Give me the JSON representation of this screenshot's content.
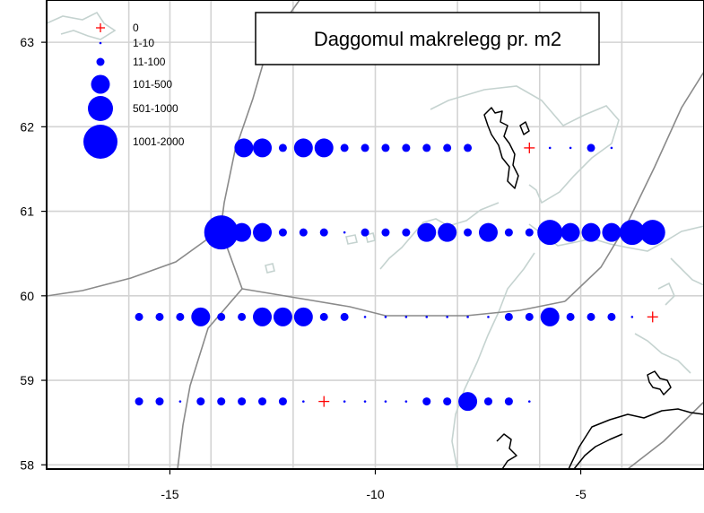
{
  "title": "Daggomul makrelegg pr. m2",
  "axes": {
    "x_ticks": [
      -15,
      -10,
      -5
    ],
    "x_tick_labels": [
      "-15",
      "-10",
      "-5"
    ],
    "y_ticks": [
      58,
      59,
      60,
      61,
      62,
      63
    ],
    "y_tick_labels": [
      "58",
      "59",
      "60",
      "61",
      "62",
      "63"
    ],
    "xlim": [
      -18.0,
      -2.0
    ],
    "ylim": [
      57.95,
      63.5
    ]
  },
  "legend": {
    "position": "top-left",
    "items": [
      {
        "label": "0",
        "symbol": "cross",
        "cls": 0
      },
      {
        "label": "1-10",
        "symbol": "dot",
        "cls": 1
      },
      {
        "label": "11-100",
        "symbol": "dot",
        "cls": 2
      },
      {
        "label": "101-500",
        "symbol": "dot",
        "cls": 3
      },
      {
        "label": "501-1000",
        "symbol": "dot",
        "cls": 4
      },
      {
        "label": "1001-2000",
        "symbol": "dot",
        "cls": 5
      }
    ]
  },
  "colors": {
    "points": "#0000ff",
    "zero_marker": "#ff0000",
    "grid": "#d3d3d3",
    "coast": "#c5d3d0",
    "boundaries": "#8a8a8a",
    "land": "#000000"
  },
  "chart_data": {
    "type": "scatter",
    "title": "Daggomul makrelegg pr. m2",
    "xlabel": "",
    "ylabel": "",
    "size_classes": [
      "0",
      "1-10",
      "11-100",
      "101-500",
      "501-1000",
      "1001-2000"
    ],
    "transects": [
      {
        "lat": 61.75,
        "points": [
          [
            -13.2,
            3
          ],
          [
            -12.75,
            3
          ],
          [
            -12.25,
            2
          ],
          [
            -11.75,
            3
          ],
          [
            -11.25,
            3
          ],
          [
            -10.75,
            2
          ],
          [
            -10.25,
            2
          ],
          [
            -9.75,
            2
          ],
          [
            -9.25,
            2
          ],
          [
            -8.75,
            2
          ],
          [
            -8.25,
            2
          ],
          [
            -7.75,
            2
          ],
          [
            -6.25,
            0
          ],
          [
            -5.75,
            1
          ],
          [
            -5.25,
            1
          ],
          [
            -4.75,
            2
          ],
          [
            -4.25,
            1
          ]
        ]
      },
      {
        "lat": 60.75,
        "points": [
          [
            -13.75,
            5
          ],
          [
            -13.25,
            3
          ],
          [
            -12.75,
            3
          ],
          [
            -12.25,
            2
          ],
          [
            -11.75,
            2
          ],
          [
            -11.25,
            2
          ],
          [
            -10.75,
            1
          ],
          [
            -10.25,
            2
          ],
          [
            -9.75,
            2
          ],
          [
            -9.25,
            2
          ],
          [
            -8.75,
            3
          ],
          [
            -8.25,
            3
          ],
          [
            -7.75,
            2
          ],
          [
            -7.25,
            3
          ],
          [
            -6.75,
            2
          ],
          [
            -6.25,
            2
          ],
          [
            -5.75,
            4
          ],
          [
            -5.25,
            3
          ],
          [
            -4.75,
            3
          ],
          [
            -4.25,
            3
          ],
          [
            -3.75,
            4
          ],
          [
            -3.25,
            4
          ]
        ]
      },
      {
        "lat": 59.75,
        "points": [
          [
            -15.75,
            2
          ],
          [
            -15.25,
            2
          ],
          [
            -14.75,
            2
          ],
          [
            -14.25,
            3
          ],
          [
            -13.75,
            2
          ],
          [
            -13.25,
            2
          ],
          [
            -12.75,
            3
          ],
          [
            -12.25,
            3
          ],
          [
            -11.75,
            3
          ],
          [
            -11.25,
            2
          ],
          [
            -10.75,
            2
          ],
          [
            -10.25,
            1
          ],
          [
            -9.75,
            1
          ],
          [
            -9.25,
            1
          ],
          [
            -8.75,
            1
          ],
          [
            -8.25,
            1
          ],
          [
            -7.75,
            1
          ],
          [
            -7.25,
            1
          ],
          [
            -6.75,
            2
          ],
          [
            -6.25,
            2
          ],
          [
            -5.75,
            3
          ],
          [
            -5.25,
            2
          ],
          [
            -4.75,
            2
          ],
          [
            -4.25,
            2
          ],
          [
            -3.75,
            1
          ],
          [
            -3.25,
            0
          ]
        ]
      },
      {
        "lat": 58.75,
        "points": [
          [
            -15.75,
            2
          ],
          [
            -15.25,
            2
          ],
          [
            -14.75,
            1
          ],
          [
            -14.25,
            2
          ],
          [
            -13.75,
            2
          ],
          [
            -13.25,
            2
          ],
          [
            -12.75,
            2
          ],
          [
            -12.25,
            2
          ],
          [
            -11.75,
            1
          ],
          [
            -11.25,
            0
          ],
          [
            -10.75,
            1
          ],
          [
            -10.25,
            1
          ],
          [
            -9.75,
            1
          ],
          [
            -9.25,
            1
          ],
          [
            -8.75,
            2
          ],
          [
            -8.25,
            2
          ],
          [
            -7.75,
            3
          ],
          [
            -7.25,
            2
          ],
          [
            -6.75,
            2
          ],
          [
            -6.25,
            1
          ]
        ]
      }
    ]
  }
}
